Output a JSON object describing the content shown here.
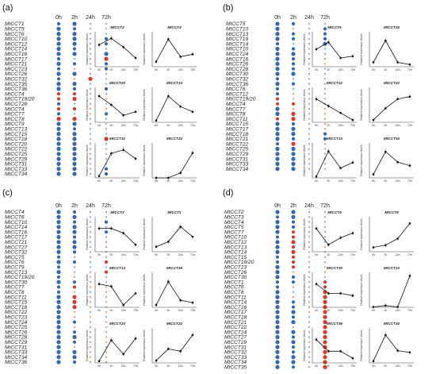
{
  "colors": {
    "up": "#d63a2a",
    "down": "#3467b0",
    "light_up": "#f0a07a",
    "light_down": "#8fb0d8",
    "line": "#111111"
  },
  "time_points": [
    "0h",
    "2h",
    "24h",
    "72h"
  ],
  "ylabel": "Relative expression levels",
  "panels": [
    {
      "label": "(a)",
      "genes": [
        "MtCCT1",
        "MtCCT5",
        "MtCCT6",
        "MtCCT10",
        "MtCCT12",
        "MtCCT14",
        "MtCCT16",
        "MtCCT17",
        "MtCCT21",
        "MtCCT23",
        "MtCCT26",
        "MtCCT32",
        "MtCCT35",
        "MtCCT36",
        "MtCCT4",
        "MtCCT19/20",
        "MtCCT28",
        "MtCCT4",
        "MtCCT7",
        "MtCCT8",
        "MtCCT9",
        "MtCCT13",
        "MtCCT15",
        "MtCCT18",
        "MtCCT20",
        "MtCCT22",
        "MtCCT25",
        "MtCCT29",
        "MtCCT31",
        "MtCCT33",
        "MtCCT34"
      ],
      "dots": [
        [
          -2,
          -3,
          -1,
          -1
        ],
        [
          -3,
          -2,
          -1,
          1
        ],
        [
          -3,
          -3,
          -1,
          -1
        ],
        [
          -3,
          -3,
          -1,
          -2
        ],
        [
          -3,
          -3,
          -1,
          -2
        ],
        [
          -3,
          -2,
          -1,
          -1
        ],
        [
          -3,
          -3,
          -1,
          -3
        ],
        [
          -2,
          -1,
          -1,
          3
        ],
        [
          -3,
          -2,
          -1,
          -2
        ],
        [
          -2,
          1,
          -1,
          -2
        ],
        [
          -3,
          -3,
          -1,
          -1
        ],
        [
          -2,
          1,
          3,
          1
        ],
        [
          -3,
          -3,
          -1,
          -1
        ],
        [
          -3,
          -2,
          -1,
          -2
        ],
        [
          2,
          2,
          -1,
          -1
        ],
        [
          2,
          3,
          1,
          1
        ],
        [
          -2,
          -1,
          -1,
          -1
        ],
        [
          2,
          2,
          1,
          1
        ],
        [
          -2,
          -1,
          1,
          -2
        ],
        [
          3,
          3,
          -1,
          -1
        ],
        [
          -3,
          -3,
          -1,
          -1
        ],
        [
          -3,
          -2,
          -1,
          -1
        ],
        [
          -3,
          -3,
          -1,
          -1
        ],
        [
          -3,
          -3,
          -1,
          3
        ],
        [
          -3,
          -3,
          -1,
          -1
        ],
        [
          -3,
          -3,
          -1,
          -1
        ],
        [
          -3,
          -3,
          -1,
          -1
        ],
        [
          -3,
          -3,
          -1,
          -1
        ],
        [
          -3,
          -3,
          -1,
          -1
        ],
        [
          -3,
          -3,
          -1,
          -2
        ],
        [
          -3,
          -3,
          -1,
          -2
        ]
      ],
      "charts": [
        {
          "title": "MtCCT2",
          "values": [
            1.0,
            1.3,
            0.9,
            0.4
          ],
          "ylim": [
            0,
            1.6
          ]
        },
        {
          "title": "MtCCT4",
          "values": [
            2,
            11,
            4,
            5
          ],
          "ylim": [
            0,
            14
          ]
        },
        {
          "title": "MtCCT20",
          "values": [
            1.5,
            1.0,
            0.4,
            0.6
          ],
          "ylim": [
            0,
            2
          ]
        },
        {
          "title": "MtCCT13",
          "values": [
            1,
            15,
            9,
            6
          ],
          "ylim": [
            0,
            20
          ]
        },
        {
          "title": "MtCCT31",
          "values": [
            1,
            14,
            16,
            11
          ],
          "ylim": [
            0,
            20
          ]
        },
        {
          "title": "MtCCT24",
          "values": [
            0,
            0,
            200,
            1000
          ],
          "ylim": [
            0,
            1400
          ]
        }
      ]
    },
    {
      "label": "(b)",
      "genes": [
        "MtCCT5",
        "MtCCT10",
        "MtCCT13",
        "MtCCT19",
        "MtCCT14",
        "MtCCT10",
        "MtCCT24",
        "MtCCT16",
        "MtCCT26",
        "MtCCT28",
        "MtCCT30",
        "MtCCT32",
        "MtCCT36",
        "MtCCT6",
        "MtCCT12",
        "MtCCT19/20",
        "MtCCT4",
        "MtCCT7",
        "MtCCT8",
        "MtCCT11",
        "MtCCT15",
        "MtCCT17",
        "MtCCT18",
        "MtCCT21",
        "MtCCT22",
        "MtCCT25",
        "MtCCT29",
        "MtCCT31",
        "MtCCT33",
        "MtCCT34"
      ],
      "dots": [
        [
          -3,
          -2,
          -1,
          -1
        ],
        [
          -3,
          -1,
          -1,
          -2
        ],
        [
          -3,
          -2,
          -1,
          -2
        ],
        [
          -3,
          -2,
          -1,
          -2
        ],
        [
          -2,
          -1,
          -1,
          -3
        ],
        [
          -3,
          -2,
          -1,
          -1
        ],
        [
          -3,
          -3,
          -1,
          -1
        ],
        [
          -3,
          -2,
          -1,
          1
        ],
        [
          -3,
          -2,
          -1,
          1
        ],
        [
          -3,
          -2,
          -1,
          -1
        ],
        [
          -3,
          -3,
          -1,
          -1
        ],
        [
          -2,
          -1,
          -1,
          -1
        ],
        [
          -3,
          -2,
          -1,
          -1
        ],
        [
          -2,
          -1,
          -1,
          -1
        ],
        [
          -2,
          1,
          -1,
          -1
        ],
        [
          2,
          1,
          1,
          -1
        ],
        [
          2,
          2,
          1,
          1
        ],
        [
          -3,
          1,
          -1,
          1
        ],
        [
          -3,
          3,
          1,
          1
        ],
        [
          2,
          3,
          1,
          1
        ],
        [
          -3,
          -2,
          -1,
          1
        ],
        [
          -3,
          -3,
          -1,
          1
        ],
        [
          -3,
          -3,
          1,
          -2
        ],
        [
          -3,
          -2,
          -1,
          -2
        ],
        [
          -2,
          3,
          1,
          -1
        ],
        [
          -3,
          -3,
          1,
          -1
        ],
        [
          -3,
          -3,
          -1,
          -1
        ],
        [
          -3,
          -3,
          1,
          -1
        ],
        [
          -3,
          -3,
          -1,
          -1
        ],
        [
          -3,
          -3,
          -1,
          -1
        ]
      ],
      "charts": [
        {
          "title": "MtCCT6",
          "values": [
            1.0,
            1.4,
            0.5,
            0.6
          ],
          "ylim": [
            0,
            2
          ]
        },
        {
          "title": "MtCCT16",
          "values": [
            1,
            6,
            1,
            0.5
          ],
          "ylim": [
            0,
            8
          ]
        },
        {
          "title": "MtCCT12",
          "values": [
            1.0,
            0.7,
            0.4,
            0.1
          ],
          "ylim": [
            0,
            1.5
          ]
        },
        {
          "title": "MtCCT22",
          "values": [
            1,
            6,
            10,
            11
          ],
          "ylim": [
            0,
            15
          ]
        },
        {
          "title": "MtCCT13",
          "values": [
            1,
            19,
            7,
            11
          ],
          "ylim": [
            0,
            25
          ]
        },
        {
          "title": "MtCCT34",
          "values": [
            2,
            15,
            9,
            7
          ],
          "ylim": [
            0,
            20
          ]
        }
      ]
    },
    {
      "label": "(c)",
      "genes": [
        "MtCCT4",
        "MtCCT6",
        "MtCCT10",
        "MtCCT14",
        "MtCCT16",
        "MtCCT17",
        "MtCCT21",
        "MtCCT27",
        "MtCCT32",
        "MtCCT5",
        "MtCCT6",
        "MtCCT9",
        "MtCCT13",
        "MtCCT19/20",
        "MtCCT30",
        "MtCCT7",
        "MtCCT8",
        "MtCCT11",
        "MtCCT15",
        "MtCCT18",
        "MtCCT22",
        "MtCCT23",
        "MtCCT24",
        "MtCCT25",
        "MtCCT26",
        "MtCCT28",
        "MtCCT29",
        "MtCCT31",
        "MtCCT33",
        "MtCCT34",
        "MtCCT36"
      ],
      "dots": [
        [
          -3,
          -2,
          -1,
          -1
        ],
        [
          -3,
          -3,
          -1,
          -1
        ],
        [
          -3,
          -2,
          -1,
          -2
        ],
        [
          -3,
          -3,
          -1,
          -1
        ],
        [
          -3,
          -3,
          -1,
          -2
        ],
        [
          -3,
          -2,
          -1,
          -1
        ],
        [
          -3,
          -3,
          -1,
          -1
        ],
        [
          -3,
          -3,
          -1,
          -1
        ],
        [
          -3,
          -2,
          -1,
          -1
        ],
        [
          -2,
          -1,
          -1,
          -1
        ],
        [
          -3,
          -2,
          -1,
          2
        ],
        [
          -2,
          -1,
          -1,
          -1
        ],
        [
          -3,
          -1,
          -1,
          2
        ],
        [
          -2,
          1,
          1,
          -1
        ],
        [
          -3,
          -2,
          -1,
          -1
        ],
        [
          -2,
          2,
          1,
          1
        ],
        [
          -2,
          1,
          -1,
          1
        ],
        [
          -3,
          3,
          1,
          1
        ],
        [
          -3,
          3,
          -1,
          1
        ],
        [
          -3,
          3,
          1,
          1
        ],
        [
          -3,
          1,
          -1,
          1
        ],
        [
          -3,
          1,
          1,
          -1
        ],
        [
          -3,
          -2,
          -1,
          1
        ],
        [
          -3,
          1,
          -1,
          1
        ],
        [
          -3,
          -2,
          -1,
          -1
        ],
        [
          -3,
          -3,
          -1,
          1
        ],
        [
          -3,
          -2,
          -1,
          1
        ],
        [
          -3,
          1,
          1,
          1
        ],
        [
          -3,
          -3,
          -1,
          1
        ],
        [
          -3,
          -3,
          1,
          1
        ],
        [
          -3,
          -2,
          1,
          1
        ]
      ],
      "charts": [
        {
          "title": "MtCCT2",
          "values": [
            1.0,
            1.0,
            0.8,
            0.3
          ],
          "ylim": [
            0,
            1.5
          ]
        },
        {
          "title": "MtCCT1",
          "values": [
            1,
            2,
            5,
            3
          ],
          "ylim": [
            0,
            7
          ]
        },
        {
          "title": "MtCCT13",
          "values": [
            1.0,
            0.9,
            0.1,
            0.6
          ],
          "ylim": [
            0,
            1.5
          ]
        },
        {
          "title": "MtCCT18",
          "values": [
            1,
            11,
            3,
            2
          ],
          "ylim": [
            0,
            15
          ]
        },
        {
          "title": "MtCCT20",
          "values": [
            1,
            13,
            5,
            14
          ],
          "ylim": [
            0,
            20
          ]
        },
        {
          "title": "MtCCT22",
          "values": [
            1,
            6,
            5,
            12
          ],
          "ylim": [
            0,
            15
          ]
        }
      ]
    },
    {
      "label": "(d)",
      "genes": [
        "MtCCT2",
        "MtCCT3",
        "MtCCT4",
        "MtCCT5",
        "MtCCT7",
        "MtCCT10",
        "MtCCT12",
        "MtCCT13",
        "MtCCT14",
        "MtCCT15",
        "MtCCT19/20",
        "MtCCT23",
        "MtCCT26",
        "MtCCT30",
        "MtCCT1",
        "MtCCT6",
        "MtCCT8",
        "MtCCT11",
        "MtCCT14",
        "MtCCT16",
        "MtCCT17",
        "MtCCT18",
        "MtCCT21",
        "MtCCT22",
        "MtCCT24",
        "MtCCT27",
        "MtCCT29",
        "MtCCT31",
        "MtCCT32",
        "MtCCT33",
        "MtCCT34",
        "MtCCT35"
      ],
      "dots": [
        [
          -3,
          -3,
          -1,
          -1
        ],
        [
          -2,
          -3,
          -1,
          -1
        ],
        [
          -3,
          -2,
          -1,
          -1
        ],
        [
          -3,
          -2,
          1,
          -1
        ],
        [
          -3,
          2,
          -1,
          -1
        ],
        [
          -2,
          2,
          1,
          -1
        ],
        [
          -3,
          3,
          -1,
          -1
        ],
        [
          -3,
          2,
          -1,
          1
        ],
        [
          -3,
          3,
          1,
          -1
        ],
        [
          -2,
          2,
          1,
          -1
        ],
        [
          -2,
          2,
          1,
          -1
        ],
        [
          -3,
          2,
          -1,
          1
        ],
        [
          -3,
          1,
          -1,
          1
        ],
        [
          -3,
          -2,
          1,
          -1
        ],
        [
          -2,
          -2,
          -1,
          2
        ],
        [
          -2,
          1,
          -1,
          2
        ],
        [
          -3,
          -1,
          -1,
          3
        ],
        [
          -3,
          1,
          -1,
          3
        ],
        [
          -3,
          -2,
          -1,
          3
        ],
        [
          -3,
          -2,
          -1,
          3
        ],
        [
          -3,
          -3,
          1,
          3
        ],
        [
          -3,
          -2,
          -1,
          3
        ],
        [
          -3,
          -3,
          -1,
          3
        ],
        [
          -3,
          -1,
          -1,
          3
        ],
        [
          -3,
          -3,
          1,
          3
        ],
        [
          -3,
          -2,
          -1,
          3
        ],
        [
          -3,
          -3,
          1,
          3
        ],
        [
          -3,
          -2,
          -1,
          3
        ],
        [
          -3,
          -2,
          -1,
          3
        ],
        [
          -3,
          -3,
          -1,
          3
        ],
        [
          -3,
          -3,
          -1,
          3
        ],
        [
          -3,
          -2,
          -1,
          3
        ]
      ],
      "charts": [
        {
          "title": "MtCCT9",
          "values": [
            1.0,
            0.3,
            0.6,
            0.8
          ],
          "ylim": [
            0,
            1.5
          ]
        },
        {
          "title": "MtCCT8",
          "values": [
            1,
            1.5,
            3,
            6.5
          ],
          "ylim": [
            0,
            8
          ]
        },
        {
          "title": "MtCCT30",
          "values": [
            1.0,
            0.6,
            0.6,
            0.5
          ],
          "ylim": [
            0,
            1.5
          ]
        },
        {
          "title": "MtCCT13",
          "values": [
            1,
            5,
            1,
            90
          ],
          "ylim": [
            0,
            100
          ]
        },
        {
          "title": "MtCCT36",
          "values": [
            1.0,
            0.5,
            0.5,
            0.2
          ],
          "ylim": [
            0,
            1.5
          ]
        },
        {
          "title": "MtCCT34",
          "values": [
            1,
            16,
            7,
            6
          ],
          "ylim": [
            0,
            20
          ]
        }
      ]
    }
  ]
}
